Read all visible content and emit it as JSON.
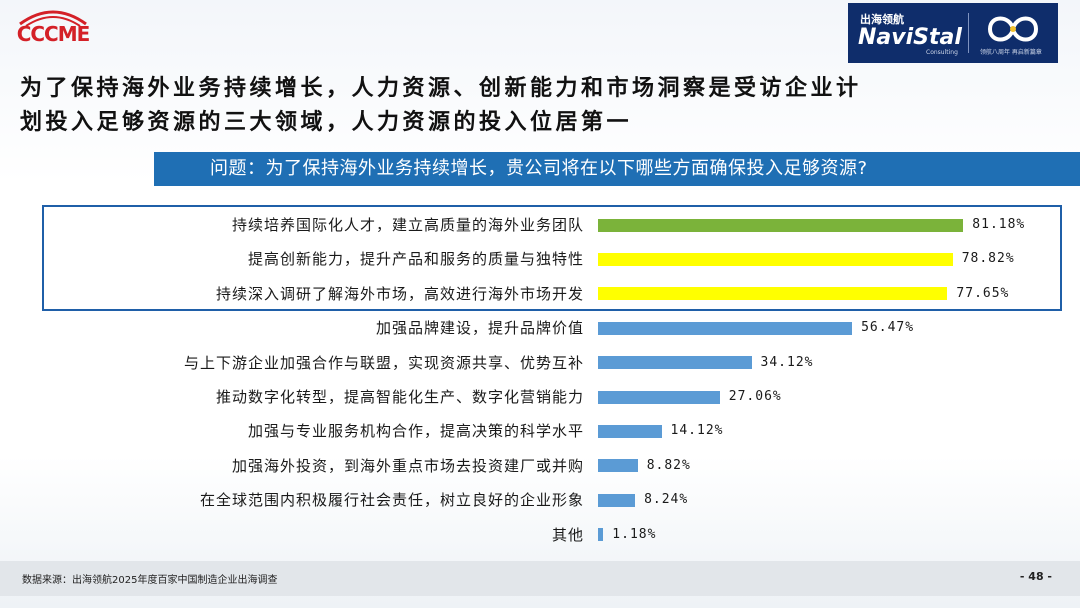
{
  "logos": {
    "left_text": "CCCME",
    "right_cn": "出海领航",
    "right_en": "NaviStal",
    "right_sub": "Consulting",
    "right_slogan": "领航八周年 再启新篇章"
  },
  "title_line1": "为了保持海外业务持续增长，人力资源、创新能力和市场洞察是受访企业计",
  "title_line2": "划投入足够资源的三大领域，人力资源的投入位居第一",
  "question": "问题：为了保持海外业务持续增长，贵公司将在以下哪些方面确保投入足够资源?",
  "colors": {
    "green": "#7bb33a",
    "yellow": "#ffff00",
    "blue": "#5b9bd5",
    "header": "#1f6fb4",
    "box": "#1f5fa8"
  },
  "chart_data": {
    "type": "bar",
    "orientation": "horizontal",
    "categories": [
      "持续培养国际化人才，建立高质量的海外业务团队",
      "提高创新能力，提升产品和服务的质量与独特性",
      "持续深入调研了解海外市场，高效进行海外市场开发",
      "加强品牌建设，提升品牌价值",
      "与上下游企业加强合作与联盟，实现资源共享、优势互补",
      "推动数字化转型，提高智能化生产、数字化营销能力",
      "加强与专业服务机构合作，提高决策的科学水平",
      "加强海外投资，到海外重点市场去投资建厂或并购",
      "在全球范围内积极履行社会责任，树立良好的企业形象",
      "其他"
    ],
    "values": [
      81.18,
      78.82,
      77.65,
      56.47,
      34.12,
      27.06,
      14.12,
      8.82,
      8.24,
      1.18
    ],
    "value_labels": [
      "81.18%",
      "78.82%",
      "77.65%",
      "56.47%",
      "34.12%",
      "27.06%",
      "14.12%",
      "8.82%",
      "8.24%",
      "1.18%"
    ],
    "bar_colors": [
      "green",
      "yellow",
      "yellow",
      "blue",
      "blue",
      "blue",
      "blue",
      "blue",
      "blue",
      "blue"
    ],
    "highlighted_top": 3,
    "xlim": [
      0,
      100
    ]
  },
  "source": "数据来源：出海领航2025年度百家中国制造企业出海调查",
  "page_number": "- 48 -"
}
